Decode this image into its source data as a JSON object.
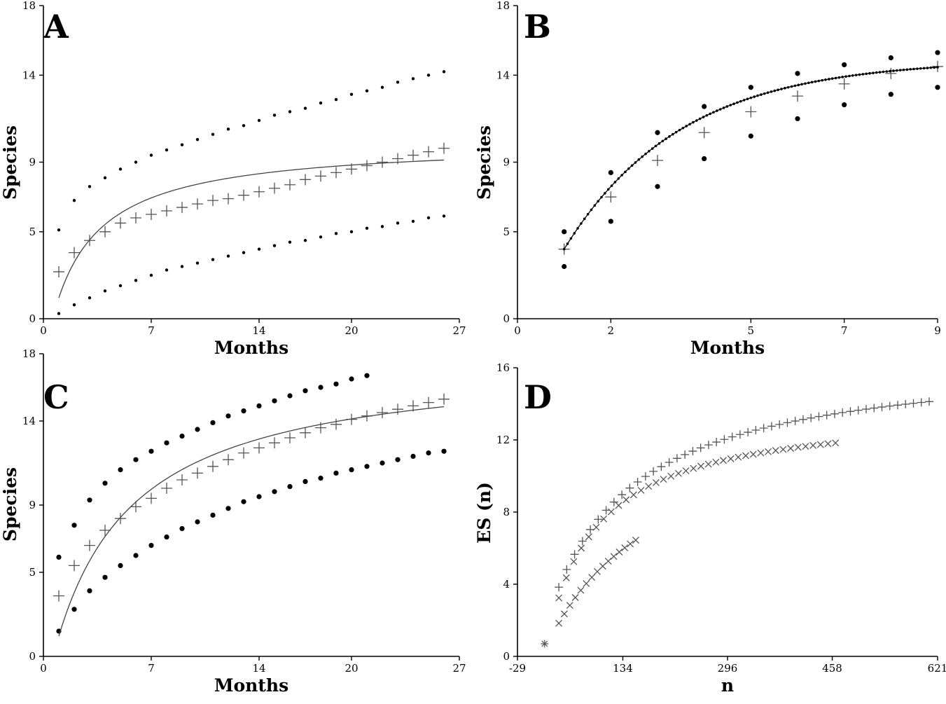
{
  "figure": {
    "panels": [
      "A",
      "B",
      "C",
      "D"
    ]
  },
  "chart_data": [
    {
      "panel": "A",
      "type": "scatter",
      "title": "A",
      "xlabel": "Months",
      "ylabel": "Species",
      "xlim": [
        0,
        27
      ],
      "ylim": [
        0,
        18
      ],
      "xticks": [
        0,
        7,
        14,
        20,
        27
      ],
      "yticks": [
        0,
        5,
        9,
        14,
        18
      ],
      "series": [
        {
          "name": "observed",
          "marker": "plus",
          "color": "#555555",
          "x": [
            1,
            2,
            3,
            4,
            5,
            6,
            7,
            8,
            9,
            10,
            11,
            12,
            13,
            14,
            15,
            16,
            17,
            18,
            19,
            20,
            21,
            22,
            23,
            24,
            25,
            26
          ],
          "y": [
            2.7,
            3.8,
            4.5,
            5.0,
            5.5,
            5.8,
            6.0,
            6.2,
            6.4,
            6.6,
            6.8,
            6.9,
            7.1,
            7.3,
            7.5,
            7.7,
            8.0,
            8.2,
            8.4,
            8.6,
            8.8,
            9.0,
            9.2,
            9.4,
            9.6,
            9.8
          ]
        },
        {
          "name": "upper bound",
          "marker": "dot",
          "color": "#000000",
          "x": [
            1,
            2,
            3,
            4,
            5,
            6,
            7,
            8,
            9,
            10,
            11,
            12,
            13,
            14,
            15,
            16,
            17,
            18,
            19,
            20,
            21,
            22,
            23,
            24,
            25,
            26
          ],
          "y": [
            5.1,
            6.8,
            7.6,
            8.1,
            8.6,
            9.0,
            9.4,
            9.7,
            10.0,
            10.3,
            10.6,
            10.9,
            11.1,
            11.4,
            11.7,
            11.9,
            12.1,
            12.4,
            12.6,
            12.9,
            13.1,
            13.3,
            13.6,
            13.8,
            14.0,
            14.2
          ]
        },
        {
          "name": "lower bound",
          "marker": "dot",
          "color": "#000000",
          "x": [
            1,
            2,
            3,
            4,
            5,
            6,
            7,
            8,
            9,
            10,
            11,
            12,
            13,
            14,
            15,
            16,
            17,
            18,
            19,
            20,
            21,
            22,
            23,
            24,
            25,
            26
          ],
          "y": [
            0.3,
            0.8,
            1.2,
            1.6,
            1.9,
            2.2,
            2.5,
            2.8,
            3.0,
            3.2,
            3.4,
            3.6,
            3.8,
            4.0,
            4.2,
            4.4,
            4.5,
            4.7,
            4.9,
            5.0,
            5.2,
            5.3,
            5.5,
            5.6,
            5.8,
            5.9
          ]
        },
        {
          "name": "fitted curve",
          "marker": "line",
          "color": "#444444",
          "model": "asymptotic",
          "a": 10.2,
          "b": 3.4,
          "xmin": 1,
          "xmax": 26
        }
      ]
    },
    {
      "panel": "B",
      "type": "scatter",
      "title": "B",
      "xlabel": "Months",
      "ylabel": "Species",
      "xlim": [
        0,
        9
      ],
      "ylim": [
        0,
        18
      ],
      "xticks": [
        0,
        2,
        5,
        7,
        9
      ],
      "yticks": [
        0,
        5,
        9,
        14,
        18
      ],
      "series": [
        {
          "name": "observed",
          "marker": "plus",
          "color": "#555555",
          "x": [
            1,
            2,
            3,
            4,
            5,
            6,
            7,
            8,
            9
          ],
          "y": [
            4.0,
            7.0,
            9.1,
            10.7,
            11.9,
            12.8,
            13.5,
            14.1,
            14.5
          ]
        },
        {
          "name": "upper bound",
          "marker": "dot",
          "color": "#000000",
          "x": [
            1,
            2,
            3,
            4,
            5,
            6,
            7,
            8,
            9
          ],
          "y": [
            5.0,
            8.4,
            10.7,
            12.2,
            13.3,
            14.1,
            14.6,
            15.0,
            15.3
          ]
        },
        {
          "name": "lower bound",
          "marker": "dot",
          "color": "#000000",
          "x": [
            1,
            2,
            3,
            4,
            5,
            6,
            7,
            8,
            9
          ],
          "y": [
            3.0,
            5.6,
            7.6,
            9.2,
            10.5,
            11.5,
            12.3,
            12.9,
            13.3
          ]
        },
        {
          "name": "fitted curve",
          "marker": "dotted-line",
          "color": "#000000",
          "model": "exponential",
          "a": 14.9,
          "b": 0.4,
          "c": 1.0,
          "y0": 4.0,
          "xmin": 1,
          "xmax": 9
        }
      ]
    },
    {
      "panel": "C",
      "type": "scatter",
      "title": "C",
      "xlabel": "Months",
      "ylabel": "Species",
      "xlim": [
        0,
        27
      ],
      "ylim": [
        0,
        18
      ],
      "xticks": [
        0,
        7,
        14,
        20,
        27
      ],
      "yticks": [
        0,
        5,
        9,
        14,
        18
      ],
      "series": [
        {
          "name": "observed",
          "marker": "plus",
          "color": "#555555",
          "x": [
            1,
            2,
            3,
            4,
            5,
            6,
            7,
            8,
            9,
            10,
            11,
            12,
            13,
            14,
            15,
            16,
            17,
            18,
            19,
            20,
            21,
            22,
            23,
            24,
            25,
            26
          ],
          "y": [
            3.6,
            5.4,
            6.6,
            7.5,
            8.2,
            8.9,
            9.4,
            10.0,
            10.5,
            10.9,
            11.3,
            11.7,
            12.1,
            12.4,
            12.7,
            13.0,
            13.3,
            13.6,
            13.8,
            14.1,
            14.3,
            14.5,
            14.7,
            14.9,
            15.1,
            15.3
          ]
        },
        {
          "name": "upper bound",
          "marker": "dot",
          "color": "#000000",
          "x": [
            1,
            2,
            3,
            4,
            5,
            6,
            7,
            8,
            9,
            10,
            11,
            12,
            13,
            14,
            15,
            16,
            17,
            18,
            19,
            20,
            21
          ],
          "y": [
            5.9,
            7.8,
            9.3,
            10.3,
            11.1,
            11.7,
            12.2,
            12.7,
            13.1,
            13.5,
            13.9,
            14.3,
            14.6,
            14.9,
            15.2,
            15.5,
            15.8,
            16.0,
            16.2,
            16.5,
            16.7
          ]
        },
        {
          "name": "lower bound",
          "marker": "dot",
          "color": "#000000",
          "x": [
            1,
            2,
            3,
            4,
            5,
            6,
            7,
            8,
            9,
            10,
            11,
            12,
            13,
            14,
            15,
            16,
            17,
            18,
            19,
            20,
            21,
            22,
            23,
            24,
            25,
            26
          ],
          "y": [
            1.5,
            2.8,
            3.9,
            4.7,
            5.4,
            6.0,
            6.6,
            7.1,
            7.6,
            8.0,
            8.4,
            8.8,
            9.2,
            9.5,
            9.8,
            10.1,
            10.4,
            10.6,
            10.9,
            11.1,
            11.3,
            11.5,
            11.7,
            11.9,
            12.1,
            12.2
          ]
        },
        {
          "name": "fitted curve",
          "marker": "line",
          "color": "#444444",
          "model": "asymptotic",
          "a": 17.8,
          "b": 5.4,
          "xmin": 1,
          "xmax": 26
        }
      ]
    },
    {
      "panel": "D",
      "type": "scatter",
      "title": "D",
      "xlabel": "n",
      "ylabel": "ES (n)",
      "xlim": [
        -29,
        621
      ],
      "ylim": [
        0,
        16
      ],
      "xticks": [
        -29,
        134,
        296,
        458,
        621
      ],
      "yticks": [
        0,
        4,
        8,
        12,
        16
      ],
      "series": [
        {
          "name": "series 1",
          "marker": "plus",
          "color": "#555555",
          "model": "saturating",
          "p": 16.8,
          "q": 115,
          "n0": 1,
          "xmin": 35,
          "xmax": 608,
          "count": 48
        },
        {
          "name": "series 2",
          "marker": "x",
          "color": "#555555",
          "model": "saturating",
          "p": 13.8,
          "q": 75,
          "n0": 12,
          "xmin": 35,
          "xmax": 463,
          "count": 38
        },
        {
          "name": "series 3",
          "marker": "x",
          "color": "#555555",
          "model": "saturating",
          "p": 13.6,
          "q": 160,
          "n0": 10,
          "xmin": 35,
          "xmax": 154,
          "count": 15
        },
        {
          "name": "series 4",
          "marker": "asterisk",
          "color": "#555555",
          "x": [
            13
          ],
          "y": [
            0.7
          ]
        }
      ]
    }
  ]
}
